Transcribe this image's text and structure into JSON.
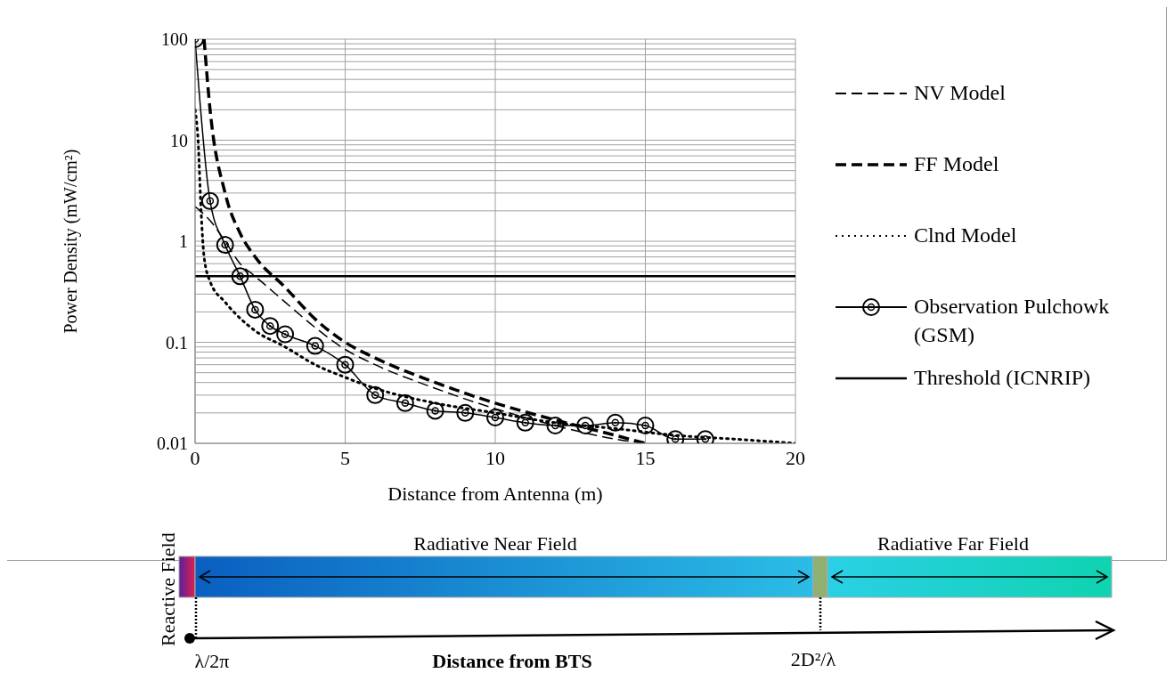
{
  "chart_data": {
    "type": "line",
    "xlabel": "Distance from Antenna (m)",
    "ylabel": "Power Density (mW/cm²)",
    "xlim": [
      0,
      20
    ],
    "xticks": [
      0,
      5,
      10,
      15,
      20
    ],
    "ylim": [
      0.01,
      100
    ],
    "yticks": [
      0.01,
      0.1,
      1,
      10,
      100
    ],
    "log": "y",
    "grid": true,
    "legend": "right",
    "series": [
      {
        "name": "NV Model",
        "color": "#000000",
        "line_style": "dashed",
        "marker": "none",
        "x": [
          0,
          0.5,
          1,
          1.5,
          2,
          3,
          4,
          5,
          6,
          8,
          10,
          12,
          14,
          15
        ],
        "values": [
          2.2,
          1.6,
          1.0,
          0.6,
          0.45,
          0.25,
          0.14,
          0.085,
          0.06,
          0.035,
          0.022,
          0.015,
          0.011,
          0.01
        ]
      },
      {
        "name": "FF Model",
        "color": "#000000",
        "line_style": "dashed",
        "marker": "none",
        "x": [
          0.3,
          0.5,
          1,
          1.5,
          2,
          3,
          4,
          5,
          6,
          8,
          10,
          12,
          14,
          15
        ],
        "values": [
          100,
          20,
          3,
          1.2,
          0.7,
          0.35,
          0.17,
          0.1,
          0.07,
          0.04,
          0.025,
          0.017,
          0.012,
          0.01
        ]
      },
      {
        "name": "Clnd Model",
        "color": "#000000",
        "line_style": "dotted",
        "marker": "none",
        "x": [
          0,
          0.1,
          0.2,
          0.3,
          0.5,
          1,
          2,
          3,
          4,
          5,
          6,
          8,
          10,
          12,
          14,
          16,
          18,
          20
        ],
        "values": [
          20,
          10,
          2,
          0.7,
          0.4,
          0.25,
          0.13,
          0.09,
          0.06,
          0.045,
          0.035,
          0.025,
          0.02,
          0.016,
          0.014,
          0.012,
          0.011,
          0.01
        ]
      },
      {
        "name": "Observation Pulchowk (GSM)",
        "color": "#000000",
        "line_style": "solid",
        "marker": "circle",
        "x": [
          0,
          0.5,
          1,
          1.5,
          2,
          2.5,
          3,
          4,
          5,
          6,
          7,
          8,
          9,
          10,
          11,
          12,
          13,
          14,
          15,
          16,
          17
        ],
        "values": [
          100,
          2.5,
          0.92,
          0.45,
          0.21,
          0.145,
          0.12,
          0.092,
          0.06,
          0.03,
          0.025,
          0.021,
          0.02,
          0.018,
          0.016,
          0.015,
          0.015,
          0.016,
          0.015,
          0.011,
          0.011
        ]
      }
    ],
    "ref_lines": [
      {
        "axis": "y",
        "value": 0.45,
        "label": "Threshold (ICNRIP)",
        "color": "#000000",
        "line_style": "solid"
      }
    ],
    "annotations": [
      "Reactive Field",
      "Radiative Near Field",
      "Radiative Far Field",
      "λ/2π",
      "Distance from BTS",
      "2D²/λ"
    ]
  }
}
